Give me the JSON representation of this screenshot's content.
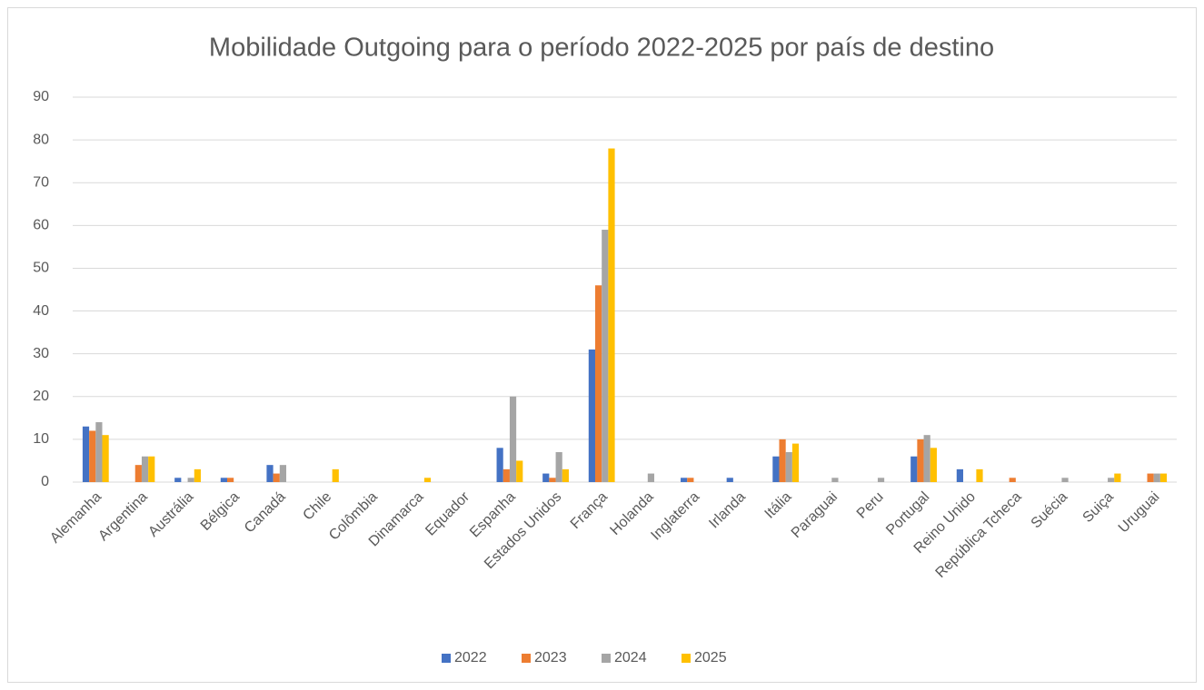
{
  "chart_data": {
    "type": "bar",
    "title": "Mobilidade Outgoing para o período 2022-2025 por país de destino",
    "categories": [
      "Alemanha",
      "Argentina",
      "Austrália",
      "Bélgica",
      "Canadá",
      "Chile",
      "Colômbia",
      "Dinamarca",
      "Equador",
      "Espanha",
      "Estados Unidos",
      "França",
      "Holanda",
      "Inglaterra",
      "Irlanda",
      "Itália",
      "Paraguai",
      "Peru",
      "Portugal",
      "Reino Unido",
      "República Tcheca",
      "Suécia",
      "Suiça",
      "Uruguai"
    ],
    "series": [
      {
        "name": "2022",
        "color": "#4472c4",
        "values": [
          13,
          0,
          1,
          1,
          4,
          0,
          0,
          0,
          0,
          8,
          2,
          31,
          0,
          1,
          1,
          6,
          0,
          0,
          6,
          3,
          0,
          0,
          0,
          0
        ]
      },
      {
        "name": "2023",
        "color": "#ed7d31",
        "values": [
          12,
          4,
          0,
          1,
          2,
          0,
          0,
          0,
          0,
          3,
          1,
          46,
          0,
          1,
          0,
          10,
          0,
          0,
          10,
          0,
          1,
          0,
          0,
          2
        ]
      },
      {
        "name": "2024",
        "color": "#a5a5a5",
        "values": [
          14,
          6,
          1,
          0,
          4,
          0,
          0,
          0,
          0,
          20,
          7,
          59,
          2,
          0,
          0,
          7,
          1,
          1,
          11,
          0,
          0,
          1,
          1,
          2
        ]
      },
      {
        "name": "2025",
        "color": "#ffc000",
        "values": [
          11,
          6,
          3,
          0,
          0,
          3,
          0,
          1,
          0,
          5,
          3,
          78,
          0,
          0,
          0,
          9,
          0,
          0,
          8,
          3,
          0,
          0,
          2,
          2
        ]
      }
    ],
    "ylim": [
      0,
      90
    ],
    "yticks": [
      0,
      10,
      20,
      30,
      40,
      50,
      60,
      70,
      80,
      90
    ],
    "grid": true,
    "legend": "bottom"
  }
}
